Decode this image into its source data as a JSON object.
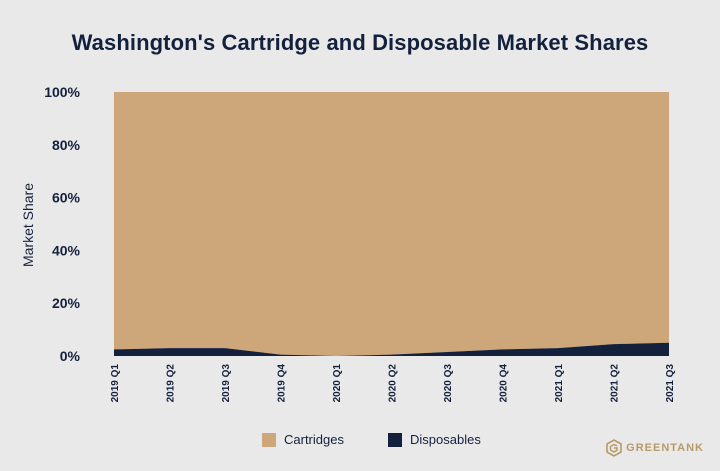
{
  "title": "Washington's Cartridge and Disposable Market Shares",
  "brand": "GREENTANK",
  "colors": {
    "background": "#e9e9e9",
    "cartridges": "#cda67a",
    "disposables": "#14213d",
    "text": "#14213d",
    "grid": "#cfcfcf"
  },
  "chart_data": {
    "type": "area",
    "stacked": true,
    "normalized_percent": true,
    "title": "Washington's Cartridge and Disposable Market Shares",
    "xlabel": "",
    "ylabel": "Market Share",
    "ylim": [
      0,
      100
    ],
    "yticks": [
      "0%",
      "20%",
      "40%",
      "60%",
      "80%",
      "100%"
    ],
    "ytick_values": [
      0,
      20,
      40,
      60,
      80,
      100
    ],
    "categories": [
      "2019 Q1",
      "2019 Q2",
      "2019 Q3",
      "2019 Q4",
      "2020 Q1",
      "2020 Q2",
      "2020 Q3",
      "2020 Q4",
      "2021 Q1",
      "2021 Q2",
      "2021 Q3"
    ],
    "series": [
      {
        "name": "Disposables",
        "values": [
          2.5,
          3.0,
          3.0,
          0.5,
          0.0,
          0.5,
          1.5,
          2.5,
          3.0,
          4.5,
          5.0
        ]
      },
      {
        "name": "Cartridges",
        "values": [
          97.5,
          97.0,
          97.0,
          99.5,
          100.0,
          99.5,
          98.5,
          97.5,
          97.0,
          95.5,
          95.0
        ]
      }
    ],
    "legend": {
      "position": "bottom-center",
      "entries": [
        "Cartridges",
        "Disposables"
      ]
    },
    "grid": false
  }
}
